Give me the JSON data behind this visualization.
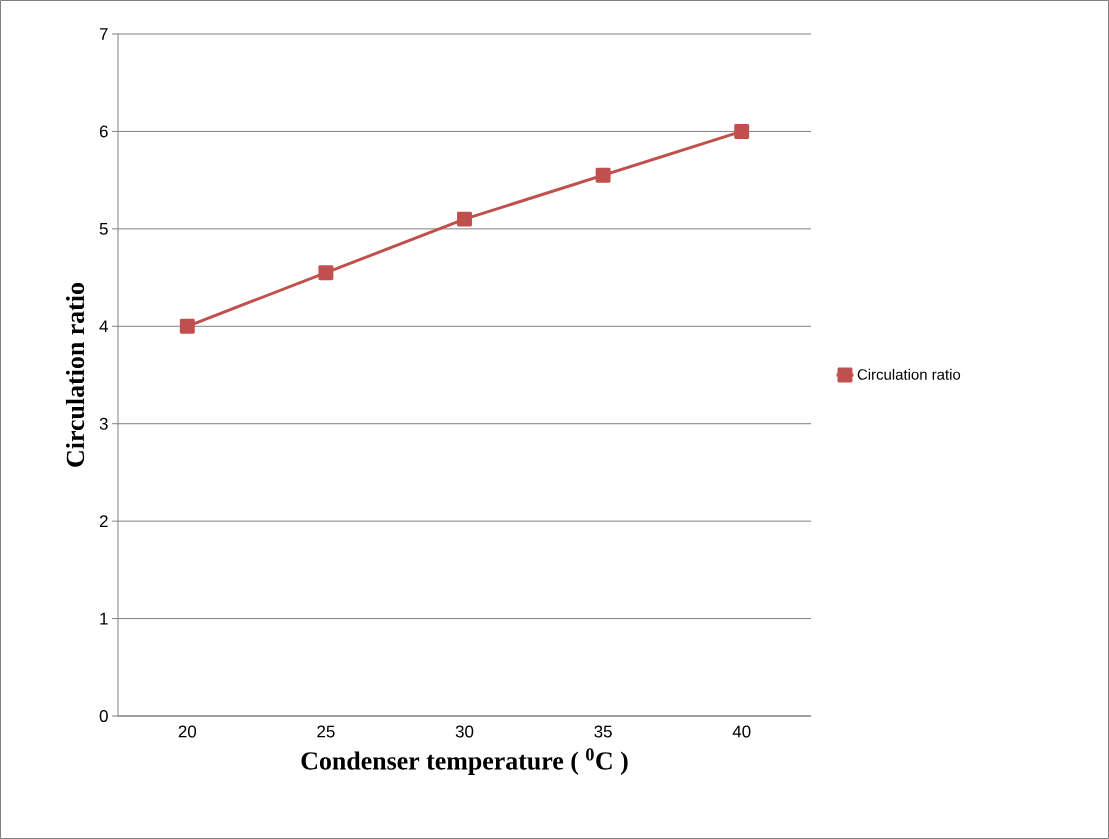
{
  "chart_data": {
    "type": "line",
    "xlabel": "Condenser temperature ( $^{0}$C )",
    "ylabel": "Circulation ratio",
    "categories": [
      "20",
      "25",
      "30",
      "35",
      "40"
    ],
    "series": [
      {
        "name": "Circulation ratio",
        "color": "#c0504d",
        "values": [
          4.0,
          4.55,
          5.1,
          5.55,
          6.0
        ]
      }
    ],
    "ylim": [
      0,
      7
    ],
    "yticks": [
      0,
      1,
      2,
      3,
      4,
      5,
      6,
      7
    ],
    "grid": "y",
    "legend": "right",
    "marker": "square",
    "line_style": "solid"
  }
}
